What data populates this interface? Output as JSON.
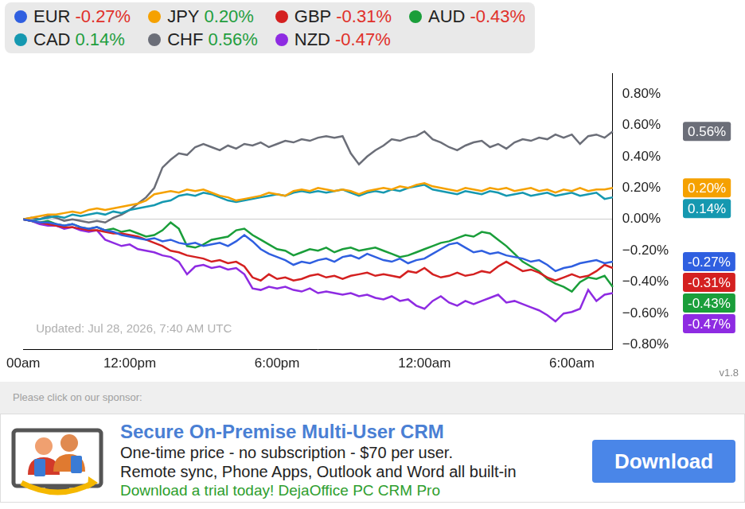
{
  "chart_data": {
    "type": "line",
    "annotation": "Updated: Jul 28, 2026, 7:40 AM UTC",
    "categories": [
      "00am",
      null,
      null,
      null,
      null,
      null,
      null,
      null,
      null,
      null,
      null,
      null,
      null,
      "12:00pm",
      null,
      null,
      null,
      null,
      null,
      null,
      null,
      null,
      null,
      null,
      null,
      null,
      null,
      null,
      null,
      null,
      null,
      "6:00pm",
      null,
      null,
      null,
      null,
      null,
      null,
      null,
      null,
      null,
      null,
      null,
      null,
      null,
      null,
      null,
      null,
      null,
      "12:00am",
      null,
      null,
      null,
      null,
      null,
      null,
      null,
      null,
      null,
      null,
      null,
      null,
      null,
      null,
      null,
      null,
      null,
      "6:00am",
      null,
      null,
      null,
      null,
      null
    ],
    "series": [
      {
        "name": "EUR",
        "color": "#2f5fe0",
        "change_label": "-0.27%",
        "values": [
          0,
          -0.01,
          -0.02,
          -0.02,
          -0.03,
          -0.04,
          -0.03,
          -0.05,
          -0.06,
          -0.05,
          -0.07,
          -0.08,
          -0.1,
          -0.11,
          -0.12,
          -0.13,
          -0.12,
          -0.14,
          -0.13,
          -0.15,
          -0.16,
          -0.15,
          -0.17,
          -0.16,
          -0.15,
          -0.17,
          -0.14,
          -0.1,
          -0.14,
          -0.19,
          -0.22,
          -0.24,
          -0.26,
          -0.29,
          -0.27,
          -0.28,
          -0.26,
          -0.25,
          -0.27,
          -0.24,
          -0.23,
          -0.25,
          -0.22,
          -0.24,
          -0.26,
          -0.27,
          -0.25,
          -0.28,
          -0.26,
          -0.25,
          -0.22,
          -0.19,
          -0.16,
          -0.15,
          -0.18,
          -0.21,
          -0.2,
          -0.22,
          -0.21,
          -0.23,
          -0.24,
          -0.25,
          -0.27,
          -0.26,
          -0.29,
          -0.33,
          -0.31,
          -0.3,
          -0.28,
          -0.27,
          -0.26,
          -0.28,
          -0.27
        ]
      },
      {
        "name": "JPY",
        "color": "#f5a100",
        "change_label": "0.20%",
        "values": [
          0,
          0.01,
          0.02,
          0.03,
          0.03,
          0.04,
          0.05,
          0.04,
          0.06,
          0.07,
          0.06,
          0.07,
          0.08,
          0.09,
          0.1,
          0.12,
          0.16,
          0.17,
          0.18,
          0.17,
          0.19,
          0.18,
          0.19,
          0.17,
          0.15,
          0.14,
          0.12,
          0.13,
          0.14,
          0.15,
          0.17,
          0.16,
          0.15,
          0.18,
          0.19,
          0.18,
          0.2,
          0.19,
          0.18,
          0.19,
          0.18,
          0.16,
          0.18,
          0.19,
          0.2,
          0.19,
          0.21,
          0.2,
          0.22,
          0.23,
          0.21,
          0.2,
          0.19,
          0.18,
          0.2,
          0.19,
          0.18,
          0.2,
          0.19,
          0.2,
          0.18,
          0.19,
          0.2,
          0.18,
          0.19,
          0.17,
          0.19,
          0.18,
          0.2,
          0.18,
          0.19,
          0.19,
          0.2
        ]
      },
      {
        "name": "GBP",
        "color": "#d42020",
        "change_label": "-0.31%",
        "values": [
          0,
          -0.01,
          -0.02,
          -0.03,
          -0.04,
          -0.05,
          -0.05,
          -0.06,
          -0.07,
          -0.07,
          -0.08,
          -0.09,
          -0.09,
          -0.1,
          -0.11,
          -0.13,
          -0.15,
          -0.17,
          -0.2,
          -0.21,
          -0.23,
          -0.24,
          -0.25,
          -0.27,
          -0.26,
          -0.28,
          -0.27,
          -0.3,
          -0.37,
          -0.39,
          -0.35,
          -0.38,
          -0.37,
          -0.39,
          -0.38,
          -0.36,
          -0.35,
          -0.37,
          -0.36,
          -0.38,
          -0.36,
          -0.35,
          -0.34,
          -0.36,
          -0.35,
          -0.36,
          -0.37,
          -0.33,
          -0.34,
          -0.31,
          -0.35,
          -0.37,
          -0.36,
          -0.34,
          -0.36,
          -0.35,
          -0.33,
          -0.34,
          -0.3,
          -0.27,
          -0.3,
          -0.33,
          -0.32,
          -0.34,
          -0.37,
          -0.39,
          -0.37,
          -0.35,
          -0.37,
          -0.36,
          -0.33,
          -0.29,
          -0.31
        ]
      },
      {
        "name": "AUD",
        "color": "#1a9e3a",
        "change_label": "-0.43%",
        "values": [
          0,
          -0.01,
          -0.02,
          -0.01,
          -0.03,
          -0.04,
          -0.03,
          -0.05,
          -0.06,
          -0.05,
          -0.07,
          -0.06,
          -0.08,
          -0.07,
          -0.09,
          -0.11,
          -0.1,
          -0.07,
          -0.02,
          -0.06,
          -0.17,
          -0.18,
          -0.16,
          -0.13,
          -0.12,
          -0.11,
          -0.07,
          -0.06,
          -0.1,
          -0.13,
          -0.16,
          -0.19,
          -0.2,
          -0.23,
          -0.21,
          -0.19,
          -0.2,
          -0.18,
          -0.21,
          -0.19,
          -0.18,
          -0.2,
          -0.19,
          -0.18,
          -0.2,
          -0.22,
          -0.24,
          -0.23,
          -0.21,
          -0.19,
          -0.17,
          -0.15,
          -0.14,
          -0.12,
          -0.1,
          -0.11,
          -0.08,
          -0.09,
          -0.13,
          -0.17,
          -0.22,
          -0.27,
          -0.3,
          -0.33,
          -0.38,
          -0.41,
          -0.43,
          -0.46,
          -0.4,
          -0.37,
          -0.38,
          -0.36,
          -0.43
        ]
      },
      {
        "name": "CAD",
        "color": "#1598b0",
        "change_label": "0.14%",
        "values": [
          0,
          -0.01,
          0,
          0.01,
          0.02,
          0.01,
          0.03,
          0.02,
          0.03,
          0.04,
          0.03,
          0.05,
          0.04,
          0.06,
          0.07,
          0.08,
          0.09,
          0.11,
          0.12,
          0.15,
          0.16,
          0.15,
          0.17,
          0.16,
          0.14,
          0.12,
          0.11,
          0.12,
          0.13,
          0.14,
          0.15,
          0.16,
          0.15,
          0.17,
          0.18,
          0.17,
          0.18,
          0.17,
          0.18,
          0.19,
          0.17,
          0.15,
          0.17,
          0.18,
          0.17,
          0.19,
          0.18,
          0.2,
          0.21,
          0.22,
          0.19,
          0.18,
          0.17,
          0.16,
          0.18,
          0.17,
          0.16,
          0.18,
          0.17,
          0.15,
          0.16,
          0.17,
          0.15,
          0.16,
          0.17,
          0.15,
          0.16,
          0.17,
          0.15,
          0.16,
          0.17,
          0.13,
          0.14
        ]
      },
      {
        "name": "CHF",
        "color": "#6b6e78",
        "change_label": "0.56%",
        "values": [
          0,
          0.01,
          0,
          0.02,
          0.01,
          -0.01,
          0,
          -0.01,
          -0.02,
          -0.01,
          -0.02,
          0.01,
          0.03,
          0.06,
          0.1,
          0.14,
          0.2,
          0.33,
          0.38,
          0.42,
          0.41,
          0.46,
          0.48,
          0.46,
          0.44,
          0.47,
          0.45,
          0.48,
          0.47,
          0.49,
          0.46,
          0.48,
          0.5,
          0.49,
          0.51,
          0.5,
          0.52,
          0.53,
          0.52,
          0.53,
          0.42,
          0.35,
          0.4,
          0.44,
          0.47,
          0.51,
          0.5,
          0.52,
          0.53,
          0.56,
          0.51,
          0.49,
          0.46,
          0.44,
          0.47,
          0.49,
          0.5,
          0.46,
          0.48,
          0.45,
          0.49,
          0.51,
          0.5,
          0.52,
          0.51,
          0.54,
          0.52,
          0.54,
          0.48,
          0.53,
          0.54,
          0.52,
          0.56
        ]
      },
      {
        "name": "NZD",
        "color": "#8e2be2",
        "change_label": "-0.47%",
        "values": [
          0,
          -0.01,
          -0.03,
          -0.04,
          -0.04,
          -0.06,
          -0.05,
          -0.07,
          -0.08,
          -0.07,
          -0.13,
          -0.15,
          -0.17,
          -0.16,
          -0.19,
          -0.2,
          -0.21,
          -0.23,
          -0.24,
          -0.27,
          -0.35,
          -0.3,
          -0.29,
          -0.31,
          -0.3,
          -0.32,
          -0.31,
          -0.35,
          -0.44,
          -0.45,
          -0.43,
          -0.44,
          -0.43,
          -0.45,
          -0.46,
          -0.44,
          -0.47,
          -0.46,
          -0.47,
          -0.48,
          -0.47,
          -0.49,
          -0.48,
          -0.5,
          -0.51,
          -0.49,
          -0.52,
          -0.51,
          -0.55,
          -0.57,
          -0.52,
          -0.49,
          -0.53,
          -0.55,
          -0.52,
          -0.54,
          -0.52,
          -0.5,
          -0.48,
          -0.53,
          -0.52,
          -0.54,
          -0.56,
          -0.58,
          -0.61,
          -0.65,
          -0.6,
          -0.59,
          -0.57,
          -0.45,
          -0.52,
          -0.48,
          -0.47
        ]
      }
    ],
    "ylim": [
      -0.83,
      0.93
    ],
    "yticks": [
      {
        "value": 0.8,
        "label": "0.80%"
      },
      {
        "value": 0.6,
        "label": "0.60%"
      },
      {
        "value": 0.4,
        "label": "0.40%"
      },
      {
        "value": 0.2,
        "label": "0.20%"
      },
      {
        "value": 0,
        "label": "0.00%"
      },
      {
        "value": -0.2,
        "label": "−0.20%"
      },
      {
        "value": -0.4,
        "label": "−0.40%"
      },
      {
        "value": -0.6,
        "label": "−0.60%"
      },
      {
        "value": -0.8,
        "label": "−0.80%"
      }
    ],
    "grid": false,
    "legend": "top"
  },
  "version": "v1.8",
  "sponsor": {
    "prompt": "Please click on our sponsor:",
    "title": "Secure On-Premise Multi-User CRM",
    "lines": [
      "One-time price - no subscription - $70 per user.",
      "Remote sync, Phone Apps, Outlook and Word all built-in"
    ],
    "call": "Download a trial today! DejaOffice PC CRM Pro",
    "button": "Download"
  }
}
